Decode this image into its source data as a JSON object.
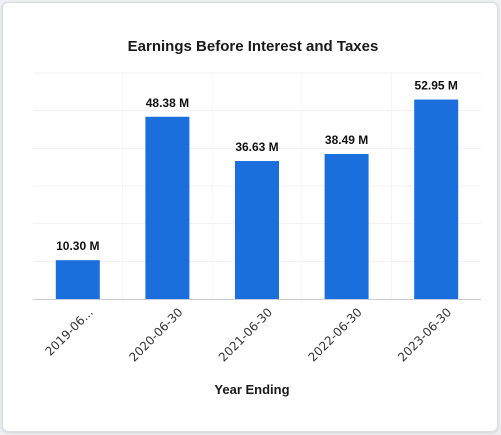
{
  "chart_data": {
    "type": "bar",
    "title": "Earnings Before Interest and Taxes",
    "xlabel": "Year Ending",
    "ylabel": "",
    "categories": [
      "2019-06...",
      "2020-06-30",
      "2021-06-30",
      "2022-06-30",
      "2023-06-30"
    ],
    "values": [
      10.3,
      48.38,
      36.63,
      38.49,
      52.95
    ],
    "value_labels": [
      "10.30 M",
      "48.38 M",
      "36.63 M",
      "38.49 M",
      "52.95 M"
    ],
    "unit": "M",
    "ylim": [
      0,
      60
    ],
    "grid": true,
    "legend": "none",
    "bar_color": "#1a6fdc",
    "bar_color_dark": "#0f5bc9"
  }
}
